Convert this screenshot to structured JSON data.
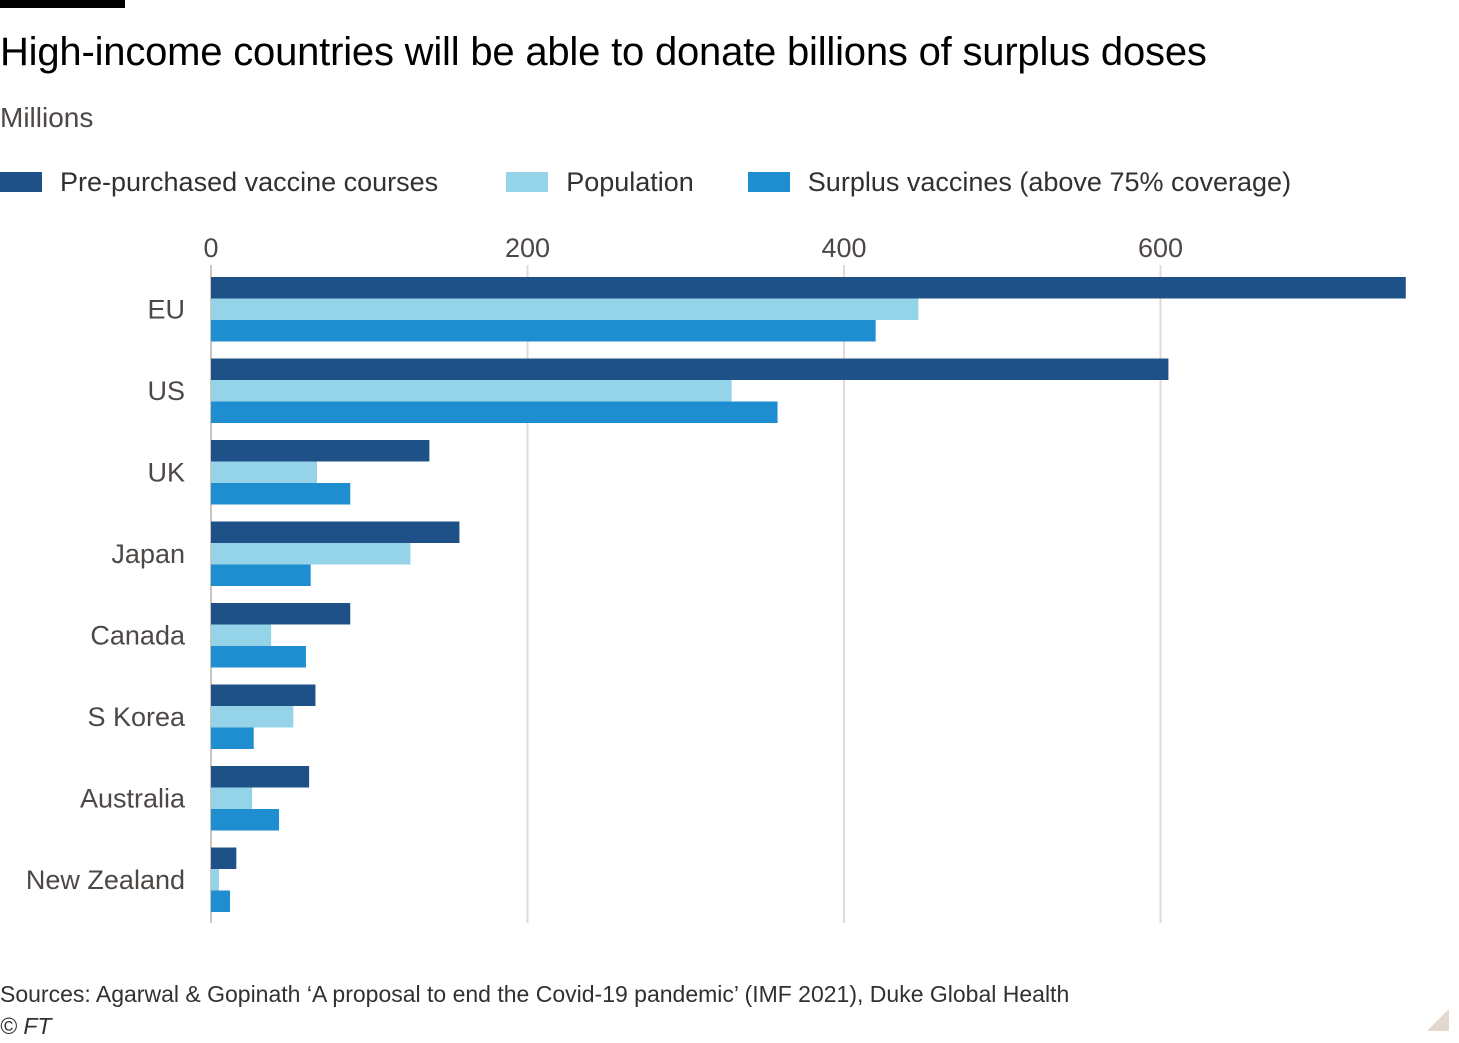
{
  "header": {
    "title": "High-income countries will be able to donate billions of surplus doses",
    "subtitle": "Millions"
  },
  "legend": [
    {
      "label": "Pre-purchased vaccine courses",
      "color": "#1f5189"
    },
    {
      "label": "Population",
      "color": "#94d3e8"
    },
    {
      "label": "Surplus vaccines (above 75% coverage)",
      "color": "#1f8ed0"
    }
  ],
  "footer": {
    "source": "Sources: Agarwal & Gopinath ‘A proposal to end the Covid-19 pandemic’ (IMF 2021), Duke Global Health",
    "credit": "© FT"
  },
  "chart_data": {
    "type": "bar",
    "orientation": "horizontal",
    "categories": [
      "EU",
      "US",
      "UK",
      "Japan",
      "Canada",
      "S Korea",
      "Australia",
      "New Zealand"
    ],
    "series": [
      {
        "name": "Pre-purchased vaccine courses",
        "color": "#1f5189",
        "values": [
          755,
          605,
          138,
          157,
          88,
          66,
          62,
          16
        ]
      },
      {
        "name": "Population",
        "color": "#94d3e8",
        "values": [
          447,
          329,
          67,
          126,
          38,
          52,
          26,
          5
        ]
      },
      {
        "name": "Surplus vaccines (above 75% coverage)",
        "color": "#1f8ed0",
        "values": [
          420,
          358,
          88,
          63,
          60,
          27,
          43,
          12
        ]
      }
    ],
    "xticks": [
      0,
      200,
      400,
      600
    ],
    "xlim": [
      0,
      755
    ],
    "grid": true,
    "gridColor": "#e6dad0",
    "legendPosition": "top"
  }
}
